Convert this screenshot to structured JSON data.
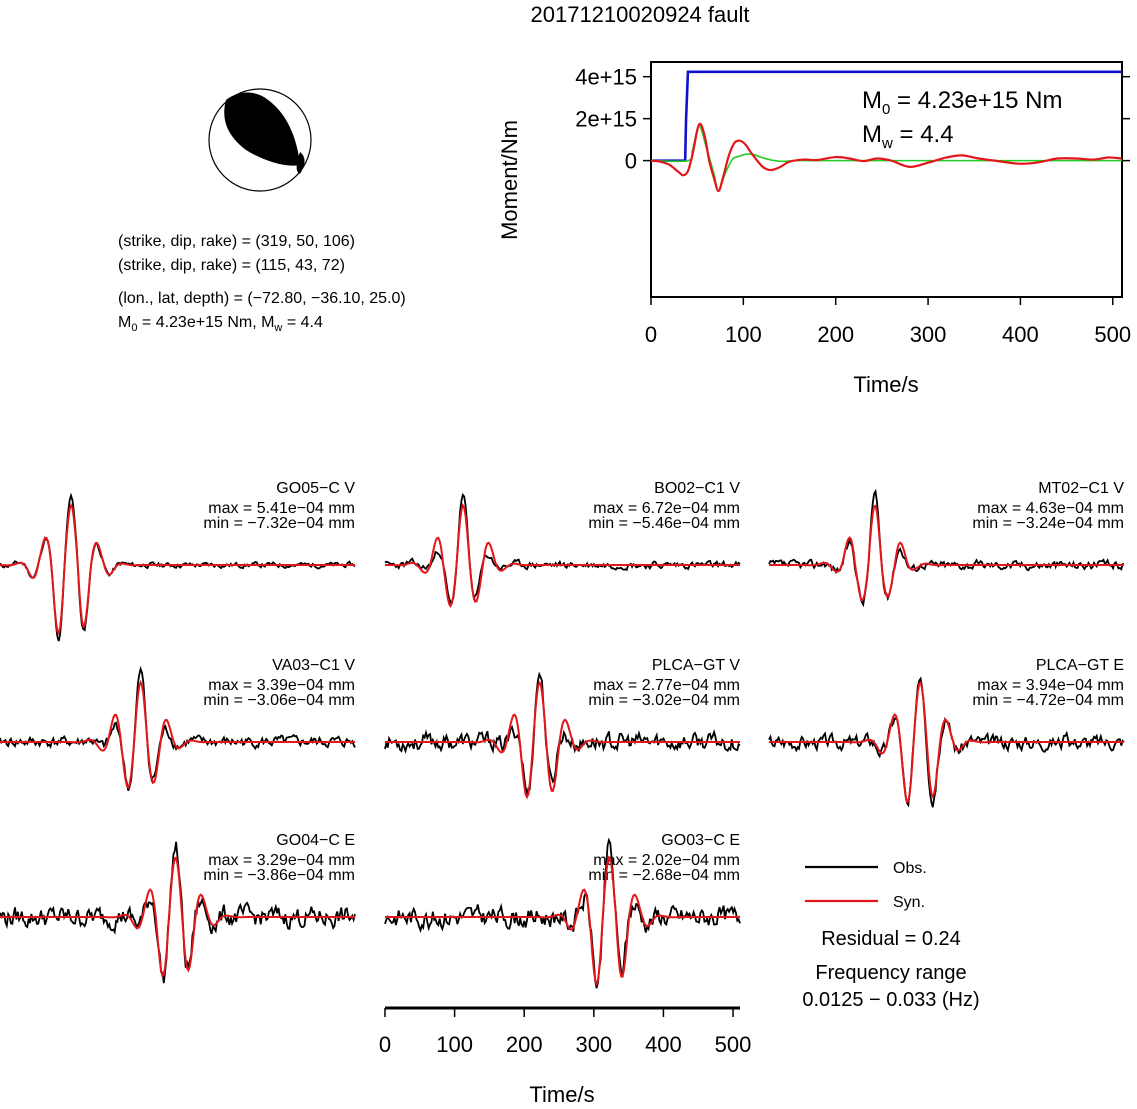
{
  "title": "20171210020924 fault",
  "focal_mechanism": {
    "nodal_plane_1": "(strike, dip, rake) = (319, 50, 106)",
    "nodal_plane_2": "(strike, dip, rake) = (115, 43, 72)",
    "location": "(lon., lat, depth) = (−72.80, −36.10, 25.0)",
    "moment_prefix": "M",
    "moment_sub": "0",
    "moment_value": " = 4.23e+15 Nm, M",
    "mw_sub": "w",
    "mw_value": " = 4.4"
  },
  "moment_panel": {
    "ylabel": "Moment/Nm",
    "xlabel": "Time/s",
    "m0_prefix": "M",
    "m0_sub": "0",
    "m0_value": " = 4.23e+15 Nm",
    "mw_prefix": "M",
    "mw_sub": "w",
    "mw_value": " = 4.4"
  },
  "colors": {
    "observed": "#000000",
    "synthetic": "#e3161b",
    "cumulative": "#1111cc",
    "source_smooth": "#22cc22"
  },
  "chart_data": [
    {
      "type": "line",
      "panel": "moment",
      "xlim": [
        0,
        510
      ],
      "ylim": [
        -6500000000000000.0,
        4700000000000000.0
      ],
      "yticks": [
        0,
        2000000000000000.0,
        4000000000000000.0
      ],
      "ytick_labels": [
        "0",
        "2e+15",
        "4e+15"
      ],
      "xticks": [
        0,
        100,
        200,
        300,
        400,
        500
      ],
      "xtick_labels": [
        "0",
        "100",
        "200",
        "300",
        "400",
        "500"
      ],
      "series": [
        {
          "role": "cumulative",
          "x": [
            0,
            37,
            38,
            40,
            510
          ],
          "y": [
            0,
            0,
            2000000000000000.0,
            4230000000000000.0,
            4230000000000000.0
          ]
        },
        {
          "role": "source_smooth",
          "x": [
            0,
            40,
            45,
            52,
            60,
            68,
            73,
            80,
            88,
            95,
            102,
            110,
            120,
            130,
            140,
            150,
            160,
            180,
            200,
            300,
            400,
            510
          ],
          "y": [
            0,
            0,
            500000000000000.0,
            1650000000000000.0,
            600000000000000.0,
            -600000000000000.0,
            -1450000000000000.0,
            -650000000000000.0,
            50000000000000.0,
            200000000000000.0,
            300000000000000.0,
            300000000000000.0,
            150000000000000.0,
            30000000000000.0,
            -30000000000000.0,
            -20000000000000.0,
            0,
            0,
            0,
            0,
            0,
            0
          ]
        },
        {
          "role": "synthetic",
          "x": [
            0,
            10,
            20,
            30,
            35,
            40,
            45,
            52,
            58,
            63,
            68,
            73,
            78,
            84,
            90,
            96,
            102,
            108,
            115,
            122,
            130,
            140,
            150,
            165,
            180,
            200,
            215,
            230,
            245,
            260,
            280,
            300,
            320,
            337,
            355,
            380,
            400,
            420,
            440,
            460,
            480,
            495,
            510
          ],
          "y": [
            0,
            -50000000000000.0,
            -200000000000000.0,
            -550000000000000.0,
            -700000000000000.0,
            -500000000000000.0,
            300000000000000.0,
            1720000000000000.0,
            1200000000000000.0,
            0,
            -800000000000000.0,
            -1450000000000000.0,
            -800000000000000.0,
            200000000000000.0,
            820000000000000.0,
            950000000000000.0,
            780000000000000.0,
            400000000000000.0,
            0,
            -330000000000000.0,
            -450000000000000.0,
            -300000000000000.0,
            -50000000000000.0,
            50000000000000.0,
            30000000000000.0,
            170000000000000.0,
            100000000000000.0,
            -20000000000000.0,
            100000000000000.0,
            0,
            -300000000000000.0,
            -100000000000000.0,
            150000000000000.0,
            250000000000000.0,
            100000000000000.0,
            -50000000000000.0,
            -150000000000000.0,
            -80000000000000.0,
            100000000000000.0,
            100000000000000.0,
            50000000000000.0,
            150000000000000.0,
            100000000000000.0
          ]
        }
      ]
    },
    {
      "type": "line",
      "panel": "waveforms",
      "xlim": [
        0,
        510
      ],
      "xticks": [
        0,
        100,
        200,
        300,
        400,
        500
      ],
      "xtick_labels": [
        "0",
        "100",
        "200",
        "300",
        "400",
        "500"
      ],
      "xlabel": "Time/s",
      "traces": [
        {
          "station": "GO05−C V",
          "max": "max = 5.41e−04 mm",
          "min": "min = −7.32e−04 mm",
          "peak_time": 100,
          "vmax": 0.000541,
          "vmin": -0.000732,
          "cc": 0.9,
          "noise": 0.03,
          "seed": 11
        },
        {
          "station": "BO02−C1 V",
          "max": "max = 6.72e−04 mm",
          "min": "min = −5.46e−04 mm",
          "peak_time": 110,
          "vmax": 0.000672,
          "vmin": -0.000546,
          "cc": 0.65,
          "noise": 0.04,
          "seed": 23
        },
        {
          "station": "MT02−C1 V",
          "max": "max = 4.63e−04 mm",
          "min": "min = −3.24e−04 mm",
          "peak_time": 150,
          "vmax": 0.000463,
          "vmin": -0.000324,
          "cc": 0.8,
          "noise": 0.05,
          "seed": 37
        },
        {
          "station": "VA03−C1 V",
          "max": "max = 3.39e−04 mm",
          "min": "min = −3.06e−04 mm",
          "peak_time": 200,
          "vmax": 0.000339,
          "vmin": -0.000306,
          "cc": 0.7,
          "noise": 0.06,
          "seed": 41
        },
        {
          "station": "PLCA−GT V",
          "max": "max = 2.77e−04 mm",
          "min": "min = −3.02e−04 mm",
          "peak_time": 220,
          "vmax": 0.000277,
          "vmin": -0.000302,
          "cc": 0.6,
          "noise": 0.1,
          "seed": 53
        },
        {
          "station": "PLCA−GT E",
          "max": "max = 3.94e−04 mm",
          "min": "min = −4.72e−04 mm",
          "peak_time": 215,
          "vmax": 0.000394,
          "vmin": -0.000472,
          "cc": 0.85,
          "noise": 0.08,
          "seed": 67
        },
        {
          "station": "GO04−C E",
          "max": "max = 3.29e−04 mm",
          "min": "min = −3.86e−04 mm",
          "peak_time": 250,
          "vmax": 0.000329,
          "vmin": -0.000386,
          "cc": 0.75,
          "noise": 0.12,
          "seed": 79
        },
        {
          "station": "GO03−C E",
          "max": "max = 2.02e−04 mm",
          "min": "min = −2.68e−04 mm",
          "peak_time": 320,
          "vmax": 0.000202,
          "vmin": -0.000268,
          "cc": 0.7,
          "noise": 0.12,
          "seed": 83
        }
      ]
    }
  ],
  "legend": {
    "observed": "Obs.",
    "synthetic": "Syn."
  },
  "residual": "Residual = 0.24",
  "frequency_label": "Frequency range",
  "frequency_range": "0.0125 − 0.033 (Hz)"
}
